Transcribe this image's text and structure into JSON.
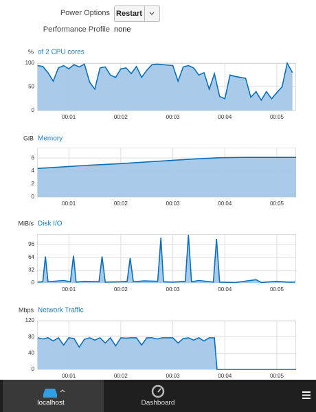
{
  "header": {
    "power_label": "Power Options",
    "power_button": "Restart",
    "profile_label": "Performance Profile",
    "profile_value": "none"
  },
  "chart_data": [
    {
      "type": "area",
      "unit": "%",
      "title": "of 2 CPU cores",
      "color": "#0b70b8",
      "fill": "#a4c8e8",
      "grid": true,
      "x": [
        0.4,
        0.5,
        0.6,
        0.7,
        0.8,
        0.9,
        1.0,
        1.1,
        1.2,
        1.3,
        1.4,
        1.5,
        1.6,
        1.7,
        1.8,
        1.9,
        2.0,
        2.1,
        2.2,
        2.3,
        2.4,
        2.5,
        2.6,
        2.7,
        2.8,
        2.9,
        3.0,
        3.1,
        3.2,
        3.3,
        3.4,
        3.5,
        3.6,
        3.7,
        3.8,
        3.9,
        4.0,
        4.1,
        4.2,
        4.3,
        4.4,
        4.5,
        4.6,
        4.7,
        4.8,
        4.9,
        5.0,
        5.1,
        5.2,
        5.3
      ],
      "values": [
        95,
        93,
        80,
        62,
        90,
        95,
        88,
        97,
        92,
        98,
        60,
        45,
        90,
        92,
        75,
        70,
        88,
        90,
        78,
        93,
        70,
        85,
        97,
        98,
        97,
        96,
        95,
        62,
        92,
        95,
        90,
        75,
        80,
        45,
        78,
        30,
        25,
        75,
        72,
        70,
        68,
        28,
        40,
        22,
        40,
        25,
        38,
        50,
        100,
        80
      ],
      "xlim": [
        0.39,
        5.37
      ],
      "xticks": [
        {
          "value": 1,
          "label": "00:01"
        },
        {
          "value": 2,
          "label": "00:02"
        },
        {
          "value": 3,
          "label": "00:03"
        },
        {
          "value": 4,
          "label": "00:04"
        },
        {
          "value": 5,
          "label": "00:05"
        }
      ],
      "ylim": [
        0,
        100
      ],
      "yticks": [
        0,
        50,
        100
      ]
    },
    {
      "type": "area",
      "unit": "GiB",
      "title": "Memory",
      "color": "#0b70b8",
      "fill": "#a4c8e8",
      "grid": true,
      "x": [
        0.4,
        0.9,
        1.4,
        1.9,
        2.4,
        2.9,
        3.4,
        3.9,
        4.4,
        4.9,
        5.37
      ],
      "values": [
        4.4,
        4.65,
        4.9,
        5.1,
        5.35,
        5.6,
        5.85,
        6.05,
        6.1,
        6.1,
        6.1
      ],
      "xlim": [
        0.39,
        5.37
      ],
      "xticks": [
        {
          "value": 1,
          "label": "00:01"
        },
        {
          "value": 2,
          "label": "00:02"
        },
        {
          "value": 3,
          "label": "00:03"
        },
        {
          "value": 4,
          "label": "00:04"
        },
        {
          "value": 5,
          "label": "00:05"
        }
      ],
      "ylim": [
        0,
        7.6
      ],
      "yticks": [
        0,
        2,
        4,
        6
      ]
    },
    {
      "type": "area",
      "unit": "MiB/s",
      "title": "Disk I/O",
      "color": "#0b70b8",
      "fill": "#a4c8e8",
      "grid": true,
      "x": [
        0.4,
        0.5,
        0.55,
        0.6,
        0.9,
        1.03,
        1.09,
        1.14,
        1.3,
        1.58,
        1.64,
        1.7,
        2.0,
        2.12,
        2.18,
        2.24,
        2.45,
        2.71,
        2.77,
        2.82,
        3.0,
        3.24,
        3.3,
        3.36,
        3.5,
        3.78,
        3.84,
        3.9,
        4.2,
        4.6,
        4.7,
        5.0,
        5.2,
        5.35
      ],
      "values": [
        2,
        3,
        66,
        3,
        6,
        3,
        68,
        2,
        4,
        3,
        66,
        2,
        3,
        4,
        62,
        3,
        5,
        4,
        113,
        3,
        2,
        4,
        120,
        3,
        6,
        2,
        110,
        2,
        1,
        8,
        1,
        4,
        2,
        2
      ],
      "xlim": [
        0.39,
        5.37
      ],
      "xticks": [
        {
          "value": 1,
          "label": "00:01"
        },
        {
          "value": 2,
          "label": "00:02"
        },
        {
          "value": 3,
          "label": "00:03"
        },
        {
          "value": 4,
          "label": "00:04"
        },
        {
          "value": 5,
          "label": "00:05"
        }
      ],
      "ylim": [
        0,
        122
      ],
      "yticks": [
        0,
        32,
        64,
        96
      ]
    },
    {
      "type": "area",
      "unit": "Mbps",
      "title": "Network Traffic",
      "color": "#0b70b8",
      "fill": "#a4c8e8",
      "grid": true,
      "x": [
        0.4,
        0.5,
        0.6,
        0.7,
        0.8,
        0.9,
        1.0,
        1.1,
        1.2,
        1.3,
        1.4,
        1.5,
        1.6,
        1.7,
        1.8,
        1.9,
        2.0,
        2.1,
        2.2,
        2.3,
        2.4,
        2.5,
        2.6,
        2.7,
        2.8,
        2.9,
        3.0,
        3.1,
        3.2,
        3.3,
        3.4,
        3.5,
        3.6,
        3.7,
        3.8,
        3.85,
        5.37
      ],
      "values": [
        78,
        75,
        78,
        70,
        78,
        60,
        78,
        76,
        55,
        74,
        78,
        72,
        78,
        65,
        78,
        58,
        78,
        77,
        78,
        78,
        60,
        78,
        78,
        75,
        78,
        78,
        78,
        65,
        76,
        78,
        72,
        78,
        70,
        78,
        78,
        0,
        0
      ],
      "xlim": [
        0.39,
        5.37
      ],
      "xticks": [
        {
          "value": 1,
          "label": "00:01"
        },
        {
          "value": 2,
          "label": "00:02"
        },
        {
          "value": 3,
          "label": "00:03"
        },
        {
          "value": 4,
          "label": "00:04"
        },
        {
          "value": 5,
          "label": "00:05"
        }
      ],
      "ylim": [
        0,
        120
      ],
      "yticks": [
        0,
        40,
        80,
        120
      ]
    }
  ],
  "footer": {
    "host": "localhost",
    "dashboard": "Dashboard"
  }
}
